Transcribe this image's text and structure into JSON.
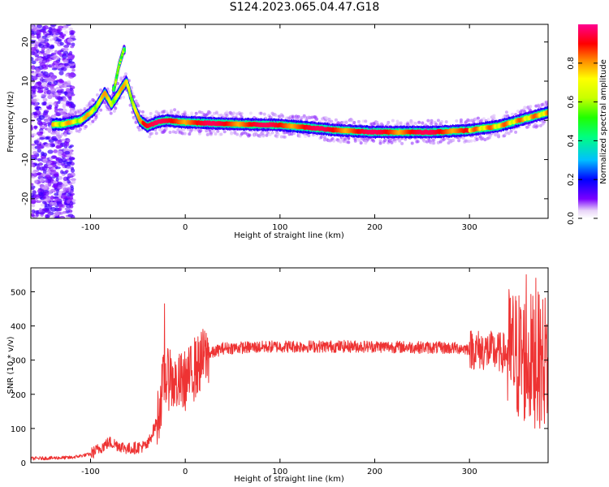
{
  "title": "S124.2023.065.04.47.G18",
  "chart_data": [
    {
      "type": "heatmap",
      "xlabel": "Height of straight line (km)",
      "ylabel": "Frequency (Hz)",
      "xlim": [
        -163,
        383
      ],
      "ylim": [
        -25,
        24.5
      ],
      "xticks": [
        -100,
        0,
        100,
        200,
        300
      ],
      "yticks": [
        -20,
        -10,
        0,
        10,
        20
      ],
      "colorbar": {
        "label": "Normalized spectral amplitude",
        "range": [
          0.0,
          1.0
        ],
        "ticks": [
          "0.0",
          "0.2",
          "0.4",
          "0.6",
          "0.8"
        ]
      },
      "ridge": [
        {
          "x": -130,
          "y": -1
        },
        {
          "x": -110,
          "y": 0
        },
        {
          "x": -95,
          "y": 3
        },
        {
          "x": -85,
          "y": 7
        },
        {
          "x": -78,
          "y": 4
        },
        {
          "x": -70,
          "y": 7
        },
        {
          "x": -62,
          "y": 10
        },
        {
          "x": -55,
          "y": 4
        },
        {
          "x": -48,
          "y": 0
        },
        {
          "x": -40,
          "y": -1.5
        },
        {
          "x": -30,
          "y": -0.5
        },
        {
          "x": -20,
          "y": 0
        },
        {
          "x": 0,
          "y": -0.5
        },
        {
          "x": 60,
          "y": -1
        },
        {
          "x": 100,
          "y": -1.2
        },
        {
          "x": 130,
          "y": -1.8
        },
        {
          "x": 160,
          "y": -2.5
        },
        {
          "x": 200,
          "y": -3
        },
        {
          "x": 260,
          "y": -3
        },
        {
          "x": 300,
          "y": -2.5
        },
        {
          "x": 330,
          "y": -1.5
        },
        {
          "x": 360,
          "y": 0.5
        },
        {
          "x": 383,
          "y": 2
        }
      ],
      "branch": [
        {
          "x": -75,
          "y": 8
        },
        {
          "x": -70,
          "y": 14
        },
        {
          "x": -65,
          "y": 18
        }
      ]
    },
    {
      "type": "line",
      "xlabel": "Height of straight line (km)",
      "ylabel": "SNR (10 * v/v)",
      "xlim": [
        -163,
        383
      ],
      "ylim": [
        0,
        570
      ],
      "xticks": [
        -100,
        0,
        100,
        200,
        300
      ],
      "yticks": [
        0,
        100,
        200,
        300,
        400,
        500
      ],
      "series_color": "#ee3333",
      "envelope": [
        {
          "x": -163,
          "y": 12
        },
        {
          "x": -120,
          "y": 15
        },
        {
          "x": -100,
          "y": 25
        },
        {
          "x": -80,
          "y": 60
        },
        {
          "x": -60,
          "y": 40
        },
        {
          "x": -40,
          "y": 50
        },
        {
          "x": -30,
          "y": 120
        },
        {
          "x": -22,
          "y": 250
        },
        {
          "x": -10,
          "y": 230
        },
        {
          "x": 0,
          "y": 240
        },
        {
          "x": 10,
          "y": 270
        },
        {
          "x": 20,
          "y": 310
        },
        {
          "x": 40,
          "y": 335
        },
        {
          "x": 100,
          "y": 340
        },
        {
          "x": 200,
          "y": 340
        },
        {
          "x": 290,
          "y": 335
        },
        {
          "x": 310,
          "y": 330
        },
        {
          "x": 340,
          "y": 320
        },
        {
          "x": 365,
          "y": 300
        },
        {
          "x": 383,
          "y": 300
        }
      ],
      "spikes": [
        {
          "x": -22,
          "y": 465
        },
        {
          "x": -16,
          "y": 330
        },
        {
          "x": -8,
          "y": 220
        },
        {
          "x": 10,
          "y": 365
        },
        {
          "x": 360,
          "y": 550
        },
        {
          "x": 370,
          "y": 540
        }
      ]
    }
  ]
}
